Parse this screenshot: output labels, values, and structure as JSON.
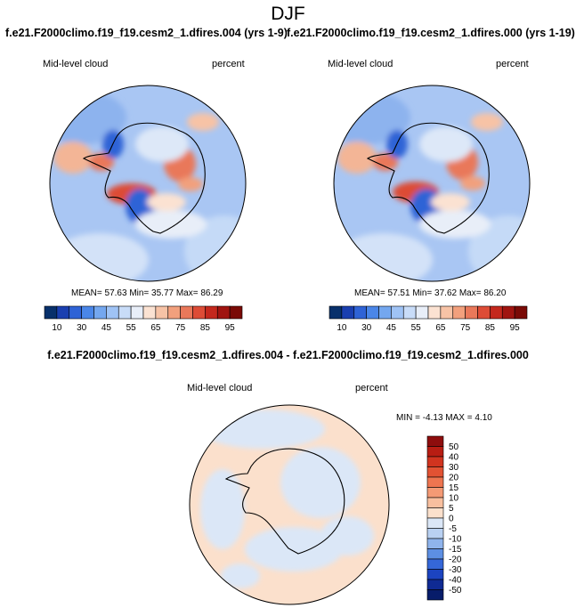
{
  "figure": {
    "season": "DJF",
    "variable": "Mid-level cloud",
    "units": "percent"
  },
  "panels": [
    {
      "title": "f.e21.F2000climo.f19_f19.cesm2_1.dfires.004 (yrs 1-9)",
      "stats": "MEAN=  57.63  Min=  35.77  Max=  86.29"
    },
    {
      "title": "f.e21.F2000climo.f19_f19.cesm2_1.dfires.000 (yrs 1-19)",
      "stats": "MEAN=  57.51  Min=  37.62  Max=  86.20"
    }
  ],
  "difference": {
    "title": "f.e21.F2000climo.f19_f19.cesm2_1.dfires.004 - f.e21.F2000climo.f19_f19.cesm2_1.dfires.000",
    "stats": "MIN =  -4.13  MAX =   4.10"
  },
  "colorbar": {
    "labels": [
      "10",
      "30",
      "45",
      "55",
      "65",
      "75",
      "85",
      "95"
    ],
    "colors": [
      "#08306b",
      "#1a3fb0",
      "#2f63d6",
      "#4a86e8",
      "#74a7ef",
      "#9fc3f5",
      "#c8dcf8",
      "#e8eef8",
      "#fbe2d2",
      "#f7c3a6",
      "#f2a07d",
      "#e9785a",
      "#dd4c36",
      "#c4281d",
      "#a01410",
      "#7a0a06"
    ]
  },
  "diff_colorbar": {
    "labels": [
      "50",
      "40",
      "30",
      "20",
      "15",
      "10",
      "5",
      "0",
      "-5",
      "-10",
      "-15",
      "-20",
      "-30",
      "-40",
      "-50"
    ],
    "colors": [
      "#8e0d0d",
      "#b81d13",
      "#d1341f",
      "#e25233",
      "#ee7550",
      "#f49a75",
      "#f8bf9f",
      "#fbe0cc",
      "#dbe7f7",
      "#b9d1f2",
      "#8fb4ec",
      "#5d8fe3",
      "#3567d8",
      "#1c44c0",
      "#0f2a93",
      "#071c6a"
    ]
  }
}
